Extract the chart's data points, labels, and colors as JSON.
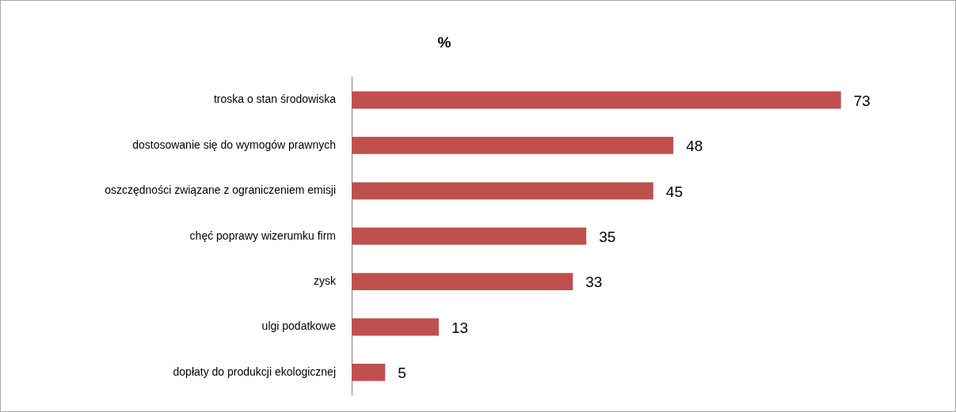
{
  "chart_data": {
    "type": "bar",
    "orientation": "horizontal",
    "title": "%",
    "categories": [
      "troska o stan środowiska",
      "dostosowanie się do wymogów prawnych",
      "oszczędności związane z ograniczeniem emisji",
      "chęć poprawy wizerumku firm",
      "zysk",
      "ulgi podatkowe",
      "dopłaty do produkcji ekologicznej"
    ],
    "values": [
      73,
      48,
      45,
      35,
      33,
      13,
      5
    ],
    "color": "#c0504d",
    "data_labels": true,
    "grid": false,
    "legend": false,
    "tick_labels": "y"
  }
}
